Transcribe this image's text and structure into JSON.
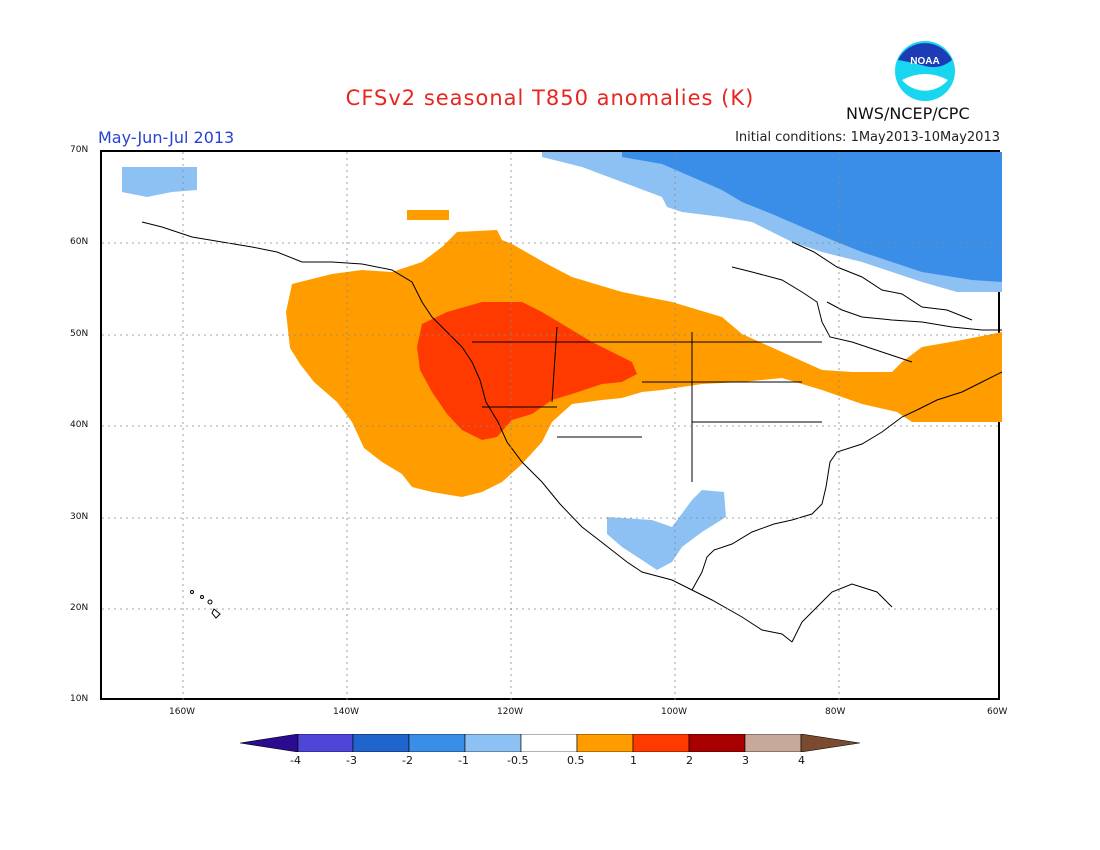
{
  "title": "CFSv2 seasonal T850 anomalies (K)",
  "period": "May-Jun-Jul 2013",
  "initial_conditions": "Initial conditions: 1May2013-10May2013",
  "agency": "NWS/NCEP/CPC",
  "logo_text": "NOAA",
  "lat_labels": [
    "70N",
    "60N",
    "50N",
    "40N",
    "30N",
    "20N",
    "10N"
  ],
  "lon_labels": [
    "160W",
    "140W",
    "120W",
    "100W",
    "80W",
    "60W"
  ],
  "colorbar": {
    "colors": [
      "#2b0c90",
      "#4d46d6",
      "#1f65cc",
      "#3a8ee8",
      "#8ec1f3",
      "#ffffff",
      "#ff9d00",
      "#ff3a00",
      "#a80000",
      "#c8a898",
      "#7b4b2f"
    ],
    "labels": [
      "-4",
      "-3",
      "-2",
      "-1",
      "-0.5",
      "0.5",
      "1",
      "2",
      "3",
      "4"
    ]
  },
  "legend_palette": {
    "light_blue": "#8ec1f3",
    "blue": "#3a8ee8",
    "orange": "#ff9d00",
    "red": "#ff3a00"
  }
}
